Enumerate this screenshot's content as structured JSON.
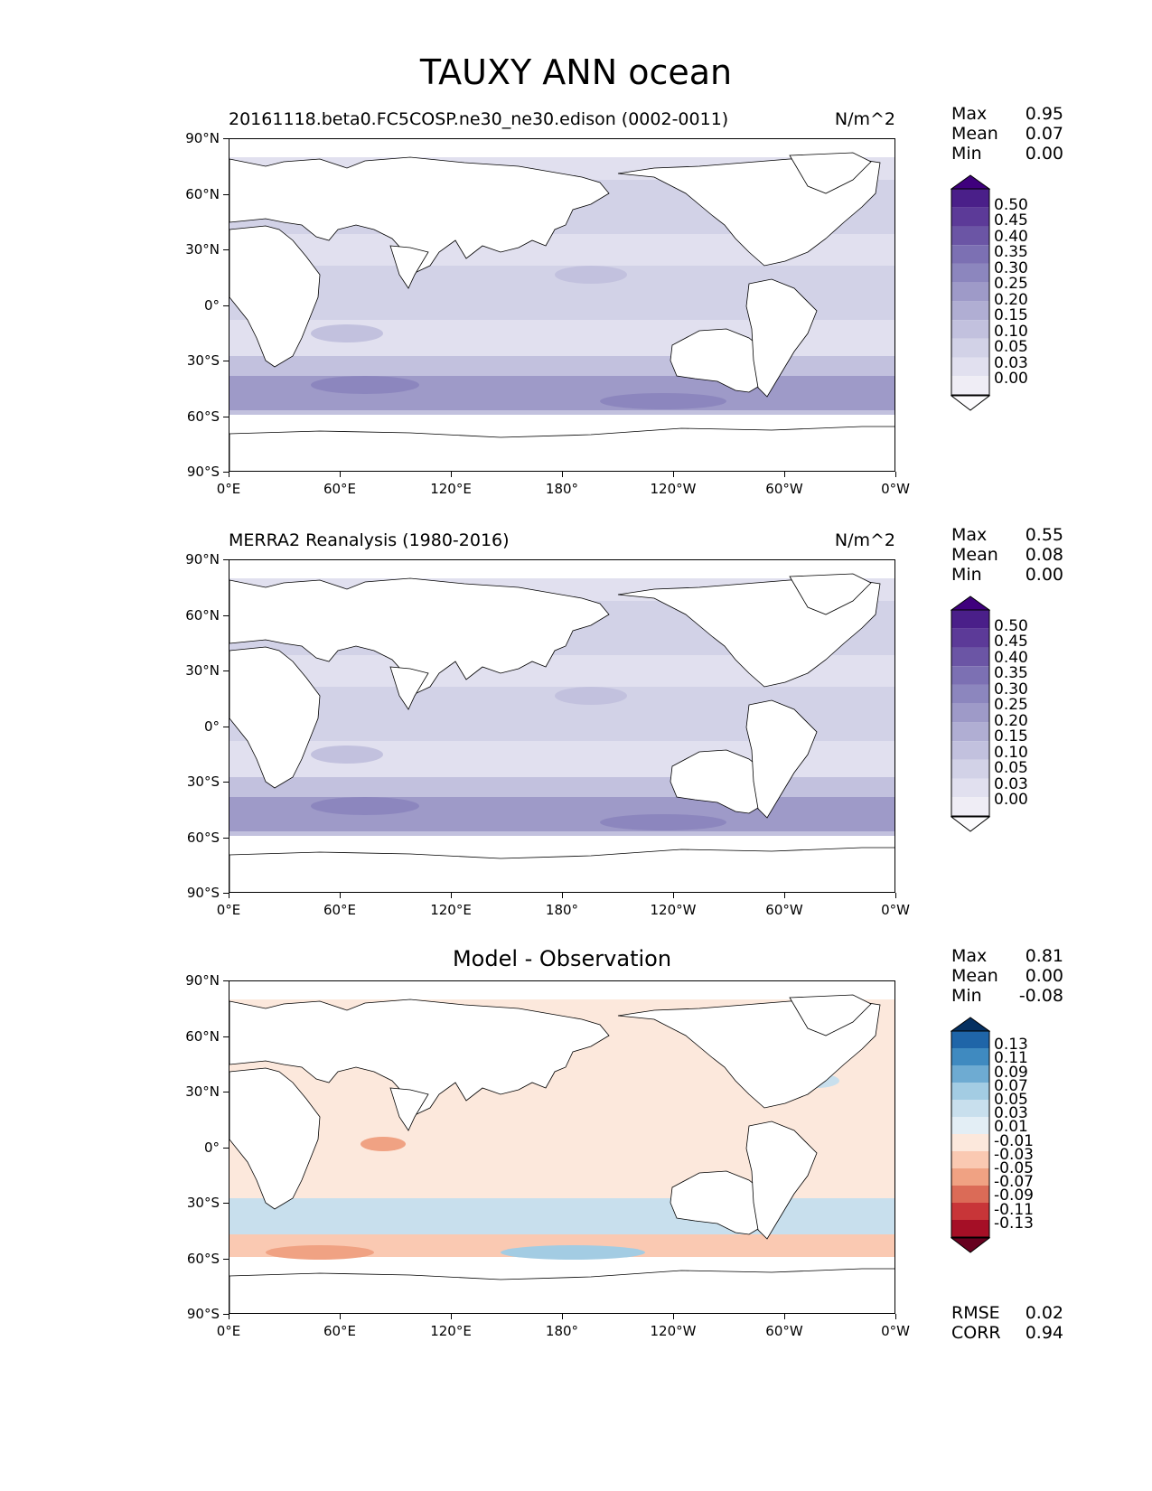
{
  "figure": {
    "title": "TAUXY ANN ocean"
  },
  "x_ticks": [
    "0°E",
    "60°E",
    "120°E",
    "180°",
    "120°W",
    "60°W",
    "0°W"
  ],
  "y_ticks": [
    "90°N",
    "60°N",
    "30°N",
    "0°",
    "30°S",
    "60°S",
    "90°S"
  ],
  "colors": {
    "seq": [
      "#fcfbfd",
      "#efedf5",
      "#e1e0ef",
      "#d2d2e7",
      "#c2c1de",
      "#b0aed3",
      "#9e9ac8",
      "#8c86be",
      "#7c70b3",
      "#6b55a5",
      "#5c3a98",
      "#4a1f89",
      "#3f007d"
    ],
    "div": [
      "#67001f",
      "#a50f26",
      "#c83538",
      "#db6b57",
      "#f0a283",
      "#fac9b2",
      "#fce8dc",
      "#e3eef5",
      "#c8dfed",
      "#a3cce3",
      "#6eabd2",
      "#3f8ac0",
      "#1f65a8",
      "#053061"
    ]
  },
  "panels": [
    {
      "title_left": "20161118.beta0.FC5COSP.ne30_ne30.edison (0002-0011)",
      "title_right": "N/m^2",
      "title_center": "",
      "stats": [
        {
          "label": "Max",
          "value": "0.95"
        },
        {
          "label": "Mean",
          "value": "0.07"
        },
        {
          "label": "Min",
          "value": "0.00"
        }
      ],
      "colorbar": {
        "levels": [
          "0.50",
          "0.45",
          "0.40",
          "0.35",
          "0.30",
          "0.25",
          "0.20",
          "0.15",
          "0.10",
          "0.05",
          "0.03",
          "0.00"
        ],
        "cmap": "seq"
      }
    },
    {
      "title_left": "MERRA2 Reanalysis (1980-2016)",
      "title_right": "N/m^2",
      "title_center": "",
      "stats": [
        {
          "label": "Max",
          "value": "0.55"
        },
        {
          "label": "Mean",
          "value": "0.08"
        },
        {
          "label": "Min",
          "value": "0.00"
        }
      ],
      "colorbar": {
        "levels": [
          "0.50",
          "0.45",
          "0.40",
          "0.35",
          "0.30",
          "0.25",
          "0.20",
          "0.15",
          "0.10",
          "0.05",
          "0.03",
          "0.00"
        ],
        "cmap": "seq"
      }
    },
    {
      "title_left": "",
      "title_right": "",
      "title_center": "Model - Observation",
      "stats": [
        {
          "label": "Max",
          "value": "0.81"
        },
        {
          "label": "Mean",
          "value": "0.00"
        },
        {
          "label": "Min",
          "value": "-0.08"
        }
      ],
      "colorbar": {
        "levels": [
          "0.13",
          "0.11",
          "0.09",
          "0.07",
          "0.05",
          "0.03",
          "0.01",
          "-0.01",
          "-0.03",
          "-0.05",
          "-0.07",
          "-0.09",
          "-0.11",
          "-0.13"
        ],
        "cmap": "div"
      },
      "extra_stats": [
        {
          "label": "RMSE",
          "value": "0.02"
        },
        {
          "label": "CORR",
          "value": "0.94"
        }
      ]
    }
  ]
}
